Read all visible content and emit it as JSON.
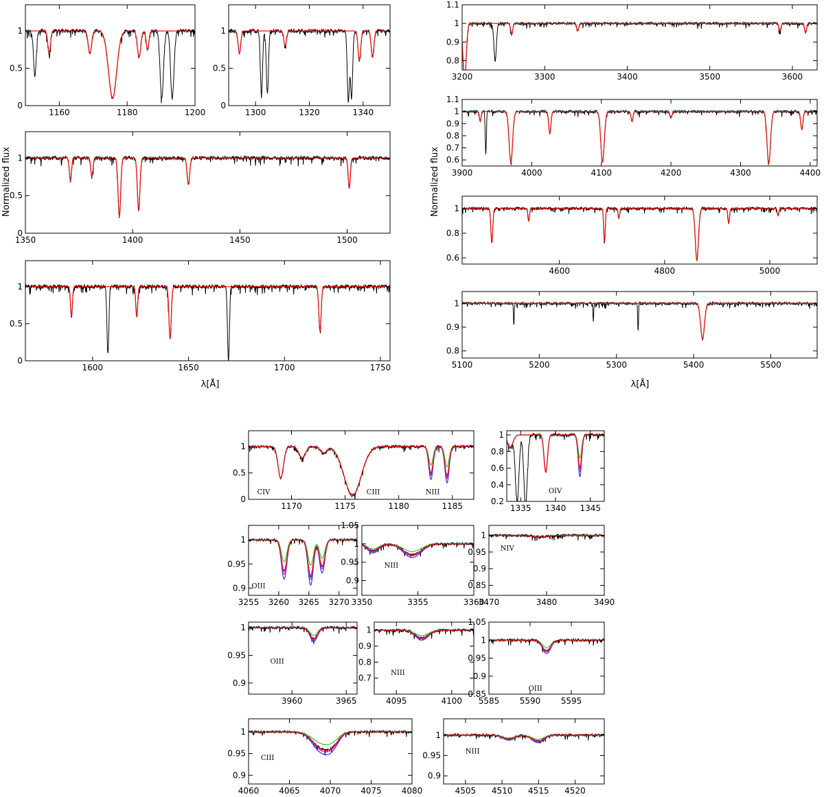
{
  "figure": {
    "ylabel_left": "Normalized flux",
    "ylabel_right": "Normalized flux",
    "xlabel_left": "λ[Å]",
    "xlabel_right": "λ[Å]"
  },
  "colors": {
    "observed": "#000000",
    "model": "#e8140c",
    "model_green": "#1fc01f",
    "model_magenta": "#d01fd0",
    "model_blue": "#1f1ff0"
  },
  "chart_data": [
    {
      "id": "uv1",
      "type": "line",
      "xlim": [
        1150,
        1200
      ],
      "ylim": [
        0,
        1.35
      ],
      "xticks": [
        1160,
        1180,
        1200
      ],
      "yticks": [
        0,
        0.5,
        1
      ],
      "grid": false,
      "lines": [
        {
          "c": 1169,
          "d": 0.3,
          "w": 0.5
        },
        {
          "c": 1175.7,
          "d": 0.9,
          "w": 1.2
        },
        {
          "c": 1183.5,
          "d": 0.35,
          "w": 0.5
        },
        {
          "c": 1190.2,
          "d": 0.9,
          "w": 0.5,
          "obs": true
        },
        {
          "c": 1193.3,
          "d": 0.9,
          "w": 0.5,
          "obs": true
        },
        {
          "c": 1152.8,
          "d": 0.6,
          "w": 0.4,
          "obs": true
        },
        {
          "c": 1157,
          "d": 0.3,
          "w": 0.4
        },
        {
          "c": 1186,
          "d": 0.25,
          "w": 0.4
        }
      ]
    },
    {
      "id": "uv2",
      "type": "line",
      "xlim": [
        1290,
        1350
      ],
      "ylim": [
        0,
        1.35
      ],
      "xticks": [
        1300,
        1320,
        1340
      ],
      "yticks": [
        0,
        0.5,
        1
      ],
      "grid": false,
      "lines": [
        {
          "c": 1302.2,
          "d": 0.85,
          "w": 0.4,
          "obs": true
        },
        {
          "c": 1304.4,
          "d": 0.85,
          "w": 0.4,
          "obs": true
        },
        {
          "c": 1334.5,
          "d": 0.95,
          "w": 0.4,
          "obs": true
        },
        {
          "c": 1335.7,
          "d": 0.9,
          "w": 0.4,
          "obs": true
        },
        {
          "c": 1338.6,
          "d": 0.4,
          "w": 0.5
        },
        {
          "c": 1343.5,
          "d": 0.35,
          "w": 0.5
        },
        {
          "c": 1294,
          "d": 0.3,
          "w": 0.5
        },
        {
          "c": 1311,
          "d": 0.2,
          "w": 0.5
        }
      ]
    },
    {
      "id": "uv3",
      "type": "line",
      "xlim": [
        1350,
        1520
      ],
      "ylim": [
        0,
        1.35
      ],
      "xticks": [
        1350,
        1400,
        1450,
        1500
      ],
      "yticks": [
        0,
        0.5,
        1
      ],
      "grid": false,
      "lines": [
        {
          "c": 1393.8,
          "d": 0.78,
          "w": 0.6
        },
        {
          "c": 1402.8,
          "d": 0.7,
          "w": 0.6
        },
        {
          "c": 1371,
          "d": 0.3,
          "w": 0.5
        },
        {
          "c": 1426,
          "d": 0.35,
          "w": 0.6
        },
        {
          "c": 1501,
          "d": 0.4,
          "w": 0.5
        },
        {
          "c": 1381,
          "d": 0.25,
          "w": 0.5
        }
      ]
    },
    {
      "id": "uv4",
      "type": "line",
      "xlim": [
        1565,
        1755
      ],
      "ylim": [
        0,
        1.35
      ],
      "xticks": [
        1600,
        1650,
        1700,
        1750
      ],
      "yticks": [
        0,
        0.5,
        1
      ],
      "grid": false,
      "lines": [
        {
          "c": 1608,
          "d": 0.9,
          "w": 0.5,
          "obs": true
        },
        {
          "c": 1640.4,
          "d": 0.7,
          "w": 0.6
        },
        {
          "c": 1670.8,
          "d": 1.0,
          "w": 0.5,
          "obs": true
        },
        {
          "c": 1718.5,
          "d": 0.6,
          "w": 0.6
        },
        {
          "c": 1589,
          "d": 0.4,
          "w": 0.5
        },
        {
          "c": 1623,
          "d": 0.4,
          "w": 0.5
        }
      ]
    },
    {
      "id": "opt1",
      "type": "line",
      "xlim": [
        3200,
        3630
      ],
      "ylim": [
        0.75,
        1.1
      ],
      "xticks": [
        3200,
        3300,
        3400,
        3500,
        3600
      ],
      "yticks": [
        0.8,
        0.9,
        1,
        1.1
      ],
      "grid": false,
      "lines": [
        {
          "c": 3203,
          "d": 0.3,
          "w": 2
        },
        {
          "c": 3240,
          "d": 0.2,
          "w": 1.5,
          "obs": true
        },
        {
          "c": 3260,
          "d": 0.06,
          "w": 1.2
        },
        {
          "c": 3340,
          "d": 0.04,
          "w": 1.2
        },
        {
          "c": 3585,
          "d": 0.04,
          "w": 1.2
        },
        {
          "c": 3616,
          "d": 0.05,
          "w": 1.2
        }
      ]
    },
    {
      "id": "opt2",
      "type": "line",
      "xlim": [
        3900,
        4410
      ],
      "ylim": [
        0.55,
        1.1
      ],
      "xticks": [
        3900,
        4000,
        4100,
        4200,
        4300,
        4400
      ],
      "yticks": [
        0.6,
        0.7,
        0.8,
        0.9,
        1,
        1.1
      ],
      "grid": false,
      "lines": [
        {
          "c": 3970,
          "d": 0.42,
          "w": 2.5
        },
        {
          "c": 4101.7,
          "d": 0.42,
          "w": 2.5
        },
        {
          "c": 4340.5,
          "d": 0.43,
          "w": 2.5
        },
        {
          "c": 4026,
          "d": 0.18,
          "w": 1.6
        },
        {
          "c": 4388,
          "d": 0.15,
          "w": 1.6
        },
        {
          "c": 3934,
          "d": 0.35,
          "w": 0.8,
          "obs": true
        },
        {
          "c": 3926,
          "d": 0.08,
          "w": 1.2
        },
        {
          "c": 4144,
          "d": 0.08,
          "w": 1.4
        },
        {
          "c": 4200,
          "d": 0.05,
          "w": 1.5
        }
      ]
    },
    {
      "id": "opt3",
      "type": "line",
      "xlim": [
        4415,
        5090
      ],
      "ylim": [
        0.55,
        1.1
      ],
      "xticks": [
        4600,
        4800,
        5000
      ],
      "yticks": [
        0.6,
        0.8,
        1
      ],
      "grid": false,
      "lines": [
        {
          "c": 4471.5,
          "d": 0.28,
          "w": 1.8
        },
        {
          "c": 4541.6,
          "d": 0.1,
          "w": 1.5
        },
        {
          "c": 4685.7,
          "d": 0.27,
          "w": 1.5
        },
        {
          "c": 4713,
          "d": 0.08,
          "w": 1.5
        },
        {
          "c": 4861.3,
          "d": 0.42,
          "w": 3
        },
        {
          "c": 4921.9,
          "d": 0.12,
          "w": 1.6
        },
        {
          "c": 5015.7,
          "d": 0.06,
          "w": 1.5
        }
      ]
    },
    {
      "id": "opt4",
      "type": "line",
      "xlim": [
        5100,
        5560
      ],
      "ylim": [
        0.77,
        1.05
      ],
      "xticks": [
        5100,
        5200,
        5300,
        5400,
        5500
      ],
      "yticks": [
        0.8,
        0.9,
        1
      ],
      "grid": false,
      "lines": [
        {
          "c": 5411.5,
          "d": 0.15,
          "w": 2.5
        },
        {
          "c": 5328,
          "d": 0.12,
          "w": 0.5,
          "obs": true
        },
        {
          "c": 5167,
          "d": 0.09,
          "w": 0.5,
          "obs": true
        },
        {
          "c": 5270,
          "d": 0.08,
          "w": 0.5,
          "obs": true
        }
      ]
    },
    {
      "id": "z1",
      "type": "line",
      "xlim": [
        1166,
        1187
      ],
      "ylim": [
        0,
        1.3
      ],
      "xticks": [
        1170,
        1175,
        1180,
        1185
      ],
      "yticks": [
        0,
        0.5,
        1
      ],
      "grid": false,
      "annotations": [
        {
          "text": "CIV",
          "x": 1166.8,
          "y": 0.1
        },
        {
          "text": "CIII",
          "x": 1177,
          "y": 0.1
        },
        {
          "text": "NIII",
          "x": 1182.5,
          "y": 0.1
        }
      ],
      "lines": [
        {
          "c": 1169,
          "d": 0.6,
          "w": 0.25
        },
        {
          "c": 1171,
          "d": 0.22,
          "w": 0.3
        },
        {
          "c": 1175.7,
          "d": 0.92,
          "w": 0.8
        },
        {
          "c": 1183,
          "d": 0.5,
          "w": 0.2,
          "multi": true
        },
        {
          "c": 1184.5,
          "d": 0.55,
          "w": 0.2,
          "multi": true
        },
        {
          "c": 1173,
          "d": 0.12,
          "w": 0.3
        }
      ]
    },
    {
      "id": "z2",
      "type": "line",
      "xlim": [
        1333,
        1347
      ],
      "ylim": [
        0.2,
        1.05
      ],
      "xticks": [
        1335,
        1340,
        1345
      ],
      "yticks": [
        0.2,
        0.4,
        0.6,
        0.8,
        1
      ],
      "grid": false,
      "annotations": [
        {
          "text": "OIV",
          "x": 1339,
          "y": 0.3
        }
      ],
      "lines": [
        {
          "c": 1334.5,
          "d": 0.8,
          "w": 0.25,
          "obs": true
        },
        {
          "c": 1335.7,
          "d": 0.85,
          "w": 0.25,
          "obs": true
        },
        {
          "c": 1338.6,
          "d": 0.45,
          "w": 0.25
        },
        {
          "c": 1343.5,
          "d": 0.4,
          "w": 0.25,
          "multi": true
        },
        {
          "c": 1333.5,
          "d": 0.15,
          "w": 0.4
        }
      ]
    },
    {
      "id": "z3",
      "type": "line",
      "xlim": [
        3255,
        3273
      ],
      "ylim": [
        0.885,
        1.03
      ],
      "xticks": [
        3255,
        3260,
        3265,
        3270
      ],
      "yticks": [
        0.9,
        0.95,
        1
      ],
      "grid": false,
      "annotations": [
        {
          "text": "OIII",
          "x": 3255.5,
          "y": 0.9
        }
      ],
      "lines": [
        {
          "c": 3260.9,
          "d": 0.065,
          "w": 0.45,
          "multi": true
        },
        {
          "c": 3265.3,
          "d": 0.075,
          "w": 0.45,
          "multi": true
        },
        {
          "c": 3267.2,
          "d": 0.055,
          "w": 0.45,
          "multi": true
        }
      ]
    },
    {
      "id": "z4",
      "type": "line",
      "xlim": [
        3350,
        3360
      ],
      "ylim": [
        0.86,
        1.05
      ],
      "xticks": [
        3350,
        3355,
        3360
      ],
      "yticks": [
        0.9,
        0.95,
        1,
        1.05
      ],
      "grid": false,
      "annotations": [
        {
          "text": "NIII",
          "x": 3352,
          "y": 0.935
        }
      ],
      "lines": [
        {
          "c": 3351,
          "d": 0.02,
          "w": 0.5,
          "multi": true
        },
        {
          "c": 3354.5,
          "d": 0.03,
          "w": 0.8,
          "multi": true
        }
      ]
    },
    {
      "id": "z5",
      "type": "line",
      "xlim": [
        3470,
        3490
      ],
      "ylim": [
        0.82,
        1.03
      ],
      "xticks": [
        3470,
        3480,
        3490
      ],
      "yticks": [
        0.85,
        0.9,
        0.95,
        1
      ],
      "grid": false,
      "annotations": [
        {
          "text": "NIV",
          "x": 3472,
          "y": 0.955
        }
      ],
      "lines": [
        {
          "c": 3479,
          "d": 0.005,
          "w": 1.2
        }
      ]
    },
    {
      "id": "z6",
      "type": "line",
      "xlim": [
        3956,
        3966
      ],
      "ylim": [
        0.88,
        1.01
      ],
      "xticks": [
        3960,
        3965
      ],
      "yticks": [
        0.9,
        0.95,
        1
      ],
      "grid": false,
      "annotations": [
        {
          "text": "OIII",
          "x": 3958,
          "y": 0.935
        }
      ],
      "lines": [
        {
          "c": 3962,
          "d": 0.02,
          "w": 0.35,
          "multi": true
        }
      ]
    },
    {
      "id": "z7",
      "type": "line",
      "xlim": [
        4093,
        4102
      ],
      "ylim": [
        0.6,
        1.05
      ],
      "xticks": [
        4095,
        4100
      ],
      "yticks": [
        0.7,
        0.8,
        0.9,
        1
      ],
      "grid": false,
      "annotations": [
        {
          "text": "NIII",
          "x": 4094.5,
          "y": 0.72
        }
      ],
      "lines": [
        {
          "c": 4097.3,
          "d": 0.05,
          "w": 0.6,
          "multi": true
        }
      ]
    },
    {
      "id": "z8",
      "type": "line",
      "xlim": [
        5585,
        5599
      ],
      "ylim": [
        0.85,
        1.05
      ],
      "xticks": [
        5585,
        5590,
        5595
      ],
      "yticks": [
        0.85,
        0.9,
        0.95,
        1,
        1.05
      ],
      "grid": false,
      "annotations": [
        {
          "text": "OIII",
          "x": 5589.8,
          "y": 0.86
        }
      ],
      "lines": [
        {
          "c": 5592,
          "d": 0.03,
          "w": 0.5,
          "multi": true
        }
      ]
    },
    {
      "id": "z9",
      "type": "line",
      "xlim": [
        4060,
        4080
      ],
      "ylim": [
        0.88,
        1.03
      ],
      "xticks": [
        4060,
        4065,
        4070,
        4075,
        4080
      ],
      "yticks": [
        0.9,
        0.95,
        1
      ],
      "grid": false,
      "annotations": [
        {
          "text": "CIII",
          "x": 4061.5,
          "y": 0.935
        }
      ],
      "lines": [
        {
          "c": 4068.9,
          "d": 0.035,
          "w": 1.1,
          "multi": true
        },
        {
          "c": 4070.3,
          "d": 0.02,
          "w": 0.8,
          "multi": true
        }
      ]
    },
    {
      "id": "z10",
      "type": "line",
      "xlim": [
        4502,
        4524
      ],
      "ylim": [
        0.88,
        1.04
      ],
      "xticks": [
        4505,
        4510,
        4515,
        4520
      ],
      "yticks": [
        0.9,
        0.95,
        1
      ],
      "grid": false,
      "annotations": [
        {
          "text": "NIII",
          "x": 4505,
          "y": 0.955
        }
      ],
      "lines": [
        {
          "c": 4510.9,
          "d": 0.01,
          "w": 0.8,
          "multi": true
        },
        {
          "c": 4514.9,
          "d": 0.015,
          "w": 0.8,
          "multi": true
        }
      ]
    }
  ]
}
